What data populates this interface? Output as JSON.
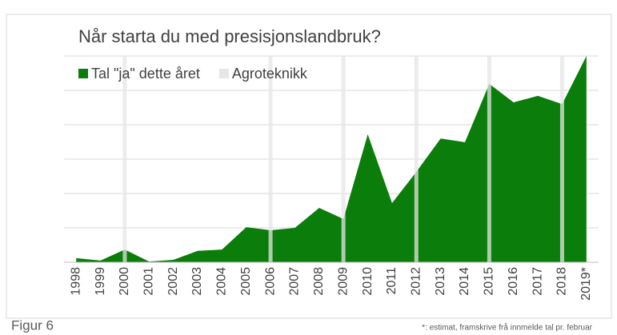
{
  "chart_data": {
    "type": "area",
    "title": "Når starta du med presisjonslandbruk?",
    "categories": [
      "1998",
      "1999",
      "2000",
      "2001",
      "2002",
      "2003",
      "2004",
      "2005",
      "2006",
      "2007",
      "2008",
      "2009",
      "2010",
      "2011",
      "2012",
      "2013",
      "2014",
      "2015",
      "2016",
      "2017",
      "2018",
      "2019*"
    ],
    "series": [
      {
        "name": "Tal \"ja\" dette året",
        "color": "#0a7d0a",
        "values": [
          0.12,
          0.05,
          0.37,
          0.02,
          0.07,
          0.33,
          0.37,
          1.02,
          0.93,
          1.0,
          1.58,
          1.26,
          3.72,
          1.72,
          2.63,
          3.6,
          3.49,
          5.19,
          4.65,
          4.84,
          4.6,
          6.0
        ]
      },
      {
        "name": "Agroteknikk",
        "color": "#e6e6e6",
        "type": "bar",
        "values": [
          null,
          null,
          6,
          null,
          null,
          null,
          null,
          null,
          6,
          null,
          null,
          6,
          null,
          null,
          6,
          null,
          null,
          6,
          null,
          null,
          6,
          null
        ]
      }
    ],
    "ylim": [
      0,
      6
    ],
    "yticks": [
      0,
      1,
      2,
      3,
      4,
      5,
      6
    ],
    "grid": true,
    "legend": "top-left",
    "figure_label": "Figur 6",
    "footnote": "*: estimat, framskrive frå innmelde tal pr. februar"
  }
}
